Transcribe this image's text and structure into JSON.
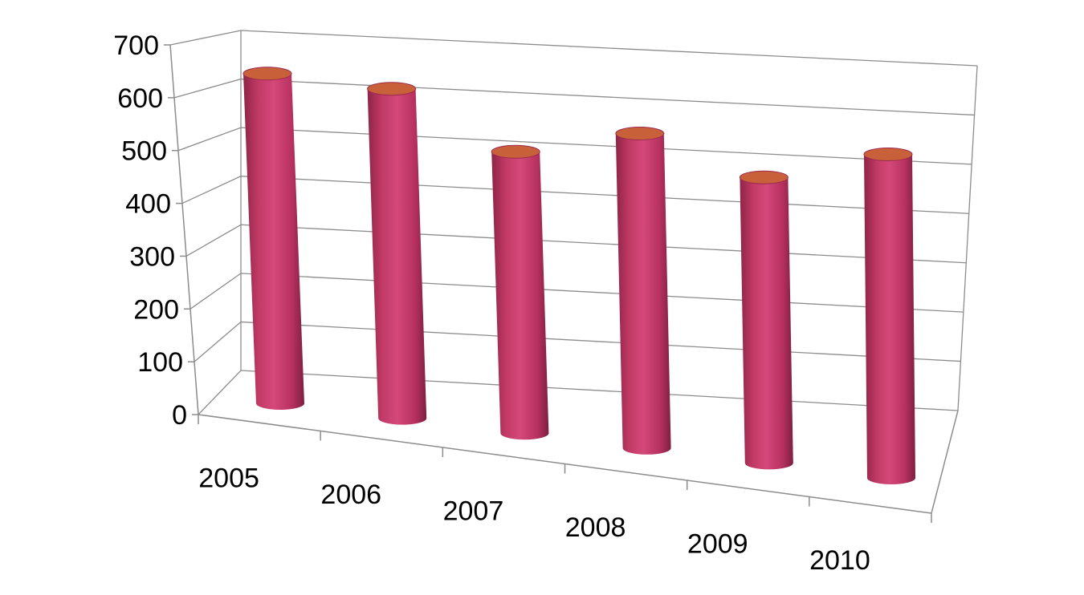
{
  "chart_data": {
    "type": "bar",
    "style": "3d-cylinder",
    "title": "",
    "xlabel": "",
    "ylabel": "",
    "categories": [
      "2005",
      "2006",
      "2007",
      "2008",
      "2009",
      "2010"
    ],
    "series": [
      {
        "values": [
          650,
          640,
          530,
          590,
          520,
          590
        ],
        "color": "#cc3f6e"
      }
    ],
    "ylim": [
      0,
      700
    ],
    "yticks": [
      0,
      100,
      200,
      300,
      400,
      500,
      600,
      700
    ],
    "grid": true,
    "legend": "none",
    "colors": {
      "body": "#cc3f6e",
      "top": "#c8603a",
      "grid": "#8c8c8c"
    }
  }
}
